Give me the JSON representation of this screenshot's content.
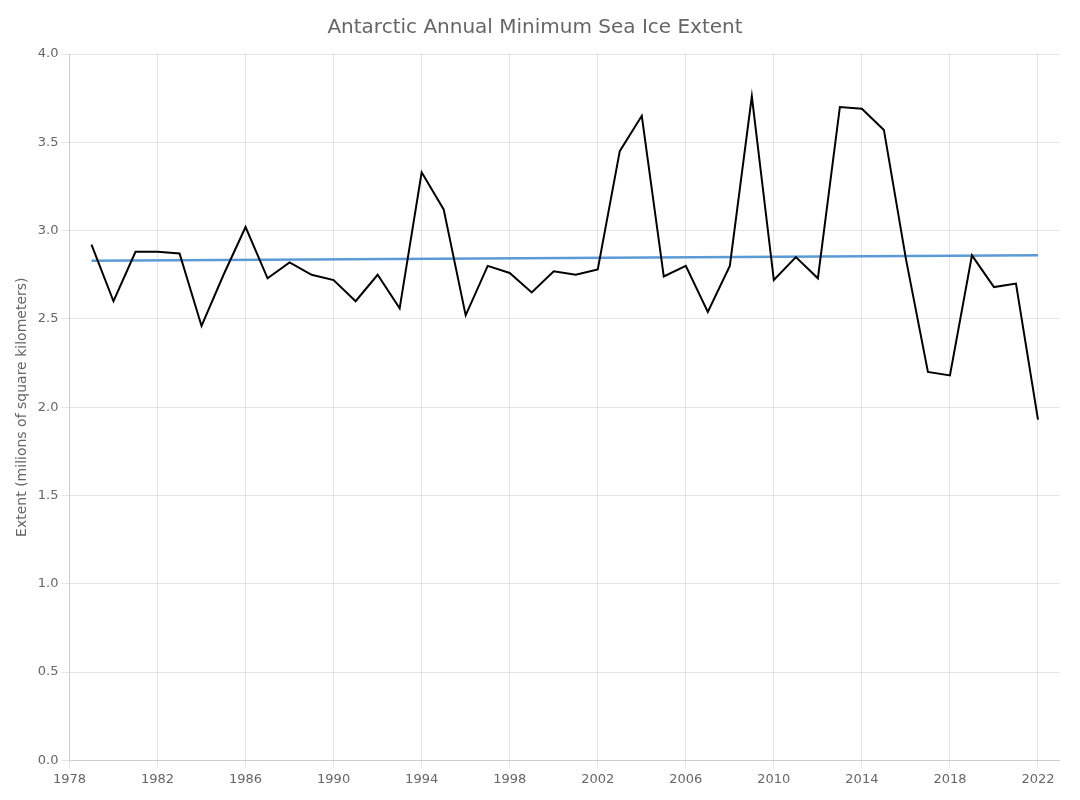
{
  "chart_data": {
    "type": "line",
    "title": "Antarctic Annual Minimum Sea Ice Extent",
    "ylabel": "Extent (milions of square kilometers)",
    "xlim": [
      1978,
      2023
    ],
    "ylim": [
      0.0,
      4.0
    ],
    "xticks": [
      1978,
      1982,
      1986,
      1990,
      1994,
      1998,
      2002,
      2006,
      2010,
      2014,
      2018,
      2022
    ],
    "yticks": [
      {
        "value": 0,
        "label": "0.0"
      },
      0.5,
      {
        "value": 1,
        "label": "1.0"
      },
      1.5,
      {
        "value": 2,
        "label": "2.0"
      },
      2.5,
      {
        "value": 3,
        "label": "3.0"
      },
      3.5,
      {
        "value": 4,
        "label": "4.0"
      }
    ],
    "grid": true,
    "series": [
      {
        "color": "#000000",
        "x": [
          1979,
          1980,
          1981,
          1982,
          1983,
          1984,
          1985,
          1986,
          1987,
          1988,
          1989,
          1990,
          1991,
          1992,
          1993,
          1994,
          1995,
          1996,
          1997,
          1998,
          1999,
          2000,
          2001,
          2002,
          2003,
          2004,
          2005,
          2006,
          2007,
          2008,
          2009,
          2010,
          2011,
          2012,
          2013,
          2014,
          2015,
          2016,
          2017,
          2018,
          2019,
          2020,
          2021,
          2022
        ],
        "values": [
          2.92,
          2.6,
          2.88,
          2.88,
          2.87,
          2.46,
          2.75,
          3.02,
          2.73,
          2.82,
          2.75,
          2.72,
          2.6,
          2.75,
          2.56,
          3.33,
          3.12,
          2.52,
          2.8,
          2.76,
          2.65,
          2.77,
          2.75,
          2.78,
          3.45,
          3.65,
          2.74,
          2.8,
          2.54,
          2.8,
          3.76,
          2.72,
          2.85,
          2.73,
          3.7,
          3.69,
          3.57,
          2.84,
          2.2,
          2.18,
          2.86,
          2.68,
          2.7,
          1.93
        ]
      },
      {
        "color": "#5b9bd5",
        "x": [
          1979,
          2022
        ],
        "values": [
          2.82955,
          2.86045
        ]
      }
    ]
  }
}
